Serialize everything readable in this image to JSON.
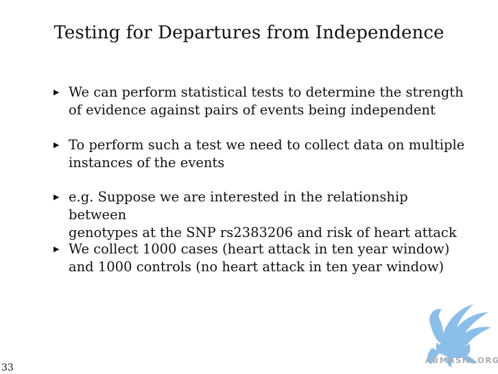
{
  "slide": {
    "title": "Testing for Departures from Independence",
    "page_number": "33"
  },
  "bullets": [
    {
      "marker": "▶",
      "text": "We can perform statistical tests to determine the strength\nof evidence against pairs of events being independent"
    },
    {
      "marker": "▶",
      "text": "To perform such a test we need to collect data on multiple\ninstances of the events"
    },
    {
      "marker": "▶",
      "text": "e.g. Suppose we are interested in the relationship between\ngenotypes at the SNP rs2383206 and risk of heart attack"
    },
    {
      "marker": "▶",
      "text": "We collect 1000 cases (heart attack in ten year window)\nand 1000 controls (no heart attack in ten year window)"
    }
  ],
  "watermark": {
    "text": "ABMASIA.ORG",
    "icon": "griffin-logo-icon",
    "color": "#7fb8e6"
  }
}
